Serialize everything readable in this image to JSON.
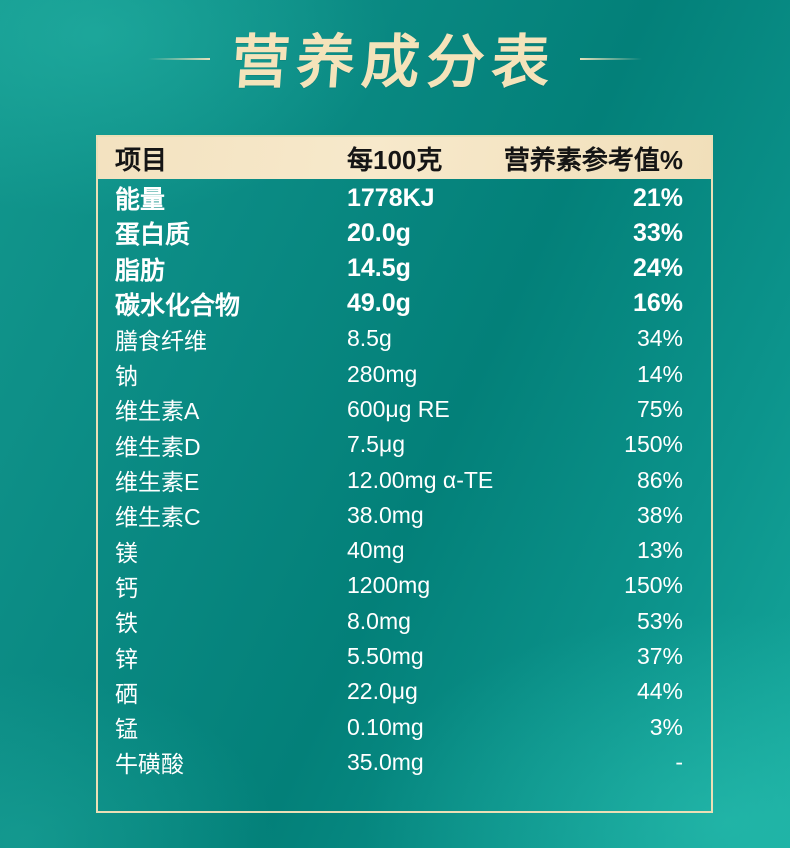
{
  "title": "营养成分表",
  "colors": {
    "background_teal_dark": "#038079",
    "background_teal_light": "#16a89c",
    "header_background": "#f3e2c0",
    "table_border": "#ebdfb6",
    "title_text": "#f4e3ba",
    "header_text": "#151515",
    "row_text": "#ffffff"
  },
  "table": {
    "headers": [
      "项目",
      "每100克",
      "营养素参考值%"
    ],
    "rows": [
      {
        "item": "能量",
        "per_100g": "1778KJ",
        "nrv": "21%",
        "emphasis": true
      },
      {
        "item": "蛋白质",
        "per_100g": "20.0g",
        "nrv": "33%",
        "emphasis": true
      },
      {
        "item": "脂肪",
        "per_100g": "14.5g",
        "nrv": "24%",
        "emphasis": true
      },
      {
        "item": "碳水化合物",
        "per_100g": "49.0g",
        "nrv": "16%",
        "emphasis": true
      },
      {
        "item": "膳食纤维",
        "per_100g": "8.5g",
        "nrv": "34%",
        "emphasis": false
      },
      {
        "item": "钠",
        "per_100g": "280mg",
        "nrv": "14%",
        "emphasis": false
      },
      {
        "item": "维生素A",
        "per_100g": "600μg RE",
        "nrv": "75%",
        "emphasis": false
      },
      {
        "item": "维生素D",
        "per_100g": "7.5μg",
        "nrv": "150%",
        "emphasis": false
      },
      {
        "item": "维生素E",
        "per_100g": "12.00mg α-TE",
        "nrv": "86%",
        "emphasis": false
      },
      {
        "item": "维生素C",
        "per_100g": "38.0mg",
        "nrv": "38%",
        "emphasis": false
      },
      {
        "item": "镁",
        "per_100g": "40mg",
        "nrv": "13%",
        "emphasis": false
      },
      {
        "item": "钙",
        "per_100g": "1200mg",
        "nrv": "150%",
        "emphasis": false
      },
      {
        "item": "铁",
        "per_100g": "8.0mg",
        "nrv": "53%",
        "emphasis": false
      },
      {
        "item": "锌",
        "per_100g": "5.50mg",
        "nrv": "37%",
        "emphasis": false
      },
      {
        "item": "硒",
        "per_100g": "22.0μg",
        "nrv": "44%",
        "emphasis": false
      },
      {
        "item": "锰",
        "per_100g": "0.10mg",
        "nrv": "3%",
        "emphasis": false
      },
      {
        "item": "牛磺酸",
        "per_100g": "35.0mg",
        "nrv": "-",
        "emphasis": false
      }
    ]
  }
}
